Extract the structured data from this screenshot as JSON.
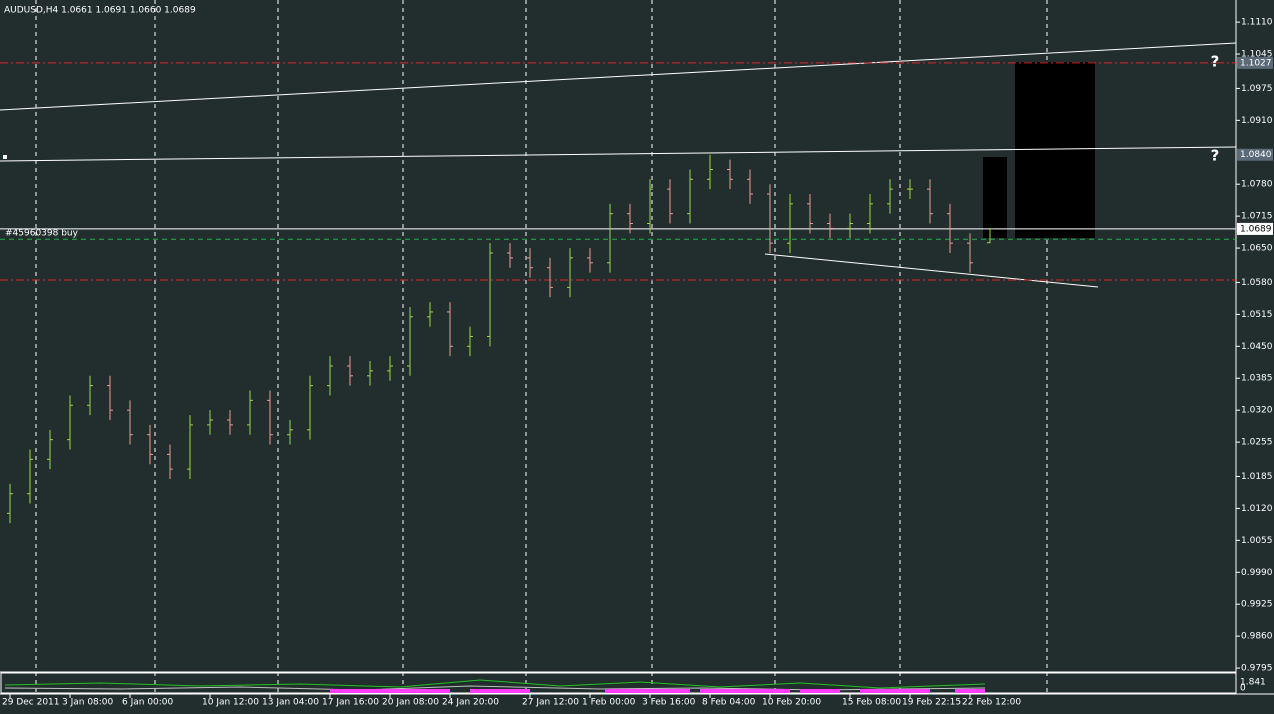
{
  "chart_data": {
    "type": "ohlc",
    "title": "AUDUSD,H4  1.0661 1.0691 1.0660 1.0689",
    "categories": [
      "29 Dec 2011",
      null,
      null,
      "3 Jan 08:00",
      null,
      null,
      "6 Jan 00:00",
      null,
      null,
      null,
      "10 Jan 12:00",
      null,
      null,
      "13 Jan 04:00",
      null,
      null,
      "17 Jan 16:00",
      null,
      null,
      "20 Jan 08:00",
      null,
      null,
      "24 Jan 20:00",
      null,
      null,
      null,
      "27 Jan 12:00",
      null,
      null,
      "1 Feb 00:00",
      null,
      null,
      "3 Feb 16:00",
      null,
      null,
      "8 Feb 04:00",
      null,
      null,
      "10 Feb 20:00",
      null,
      null,
      null,
      "15 Feb 08:00",
      null,
      null,
      "19 Feb 22:15",
      null,
      null,
      "22 Feb 12:00",
      null
    ],
    "open": [
      1.011,
      1.015,
      1.022,
      1.026,
      1.033,
      1.037,
      1.032,
      1.027,
      1.023,
      1.02,
      1.029,
      1.03,
      1.029,
      1.034,
      1.027,
      1.028,
      1.037,
      1.041,
      1.039,
      1.04,
      1.041,
      1.051,
      1.052,
      1.045,
      1.047,
      1.064,
      1.063,
      1.061,
      1.057,
      1.063,
      1.062,
      1.072,
      1.07,
      1.077,
      1.072,
      1.079,
      1.081,
      1.079,
      1.076,
      1.066,
      1.074,
      1.07,
      1.069,
      1.07,
      1.074,
      1.077,
      1.077,
      1.072,
      1.066,
      1.0661
    ],
    "high": [
      1.017,
      1.024,
      1.028,
      1.035,
      1.039,
      1.039,
      1.034,
      1.029,
      1.025,
      1.031,
      1.032,
      1.032,
      1.036,
      1.036,
      1.03,
      1.039,
      1.043,
      1.043,
      1.042,
      1.043,
      1.053,
      1.054,
      1.054,
      1.049,
      1.066,
      1.066,
      1.065,
      1.063,
      1.065,
      1.065,
      1.074,
      1.074,
      1.079,
      1.079,
      1.081,
      1.084,
      1.083,
      1.081,
      1.078,
      1.076,
      1.076,
      1.072,
      1.072,
      1.076,
      1.079,
      1.079,
      1.079,
      1.074,
      1.068,
      1.0691
    ],
    "low": [
      1.009,
      1.013,
      1.02,
      1.024,
      1.031,
      1.03,
      1.025,
      1.021,
      1.018,
      1.018,
      1.027,
      1.027,
      1.027,
      1.025,
      1.025,
      1.026,
      1.035,
      1.037,
      1.037,
      1.038,
      1.039,
      1.049,
      1.043,
      1.043,
      1.045,
      1.061,
      1.059,
      1.055,
      1.055,
      1.06,
      1.06,
      1.068,
      1.068,
      1.07,
      1.07,
      1.077,
      1.077,
      1.074,
      1.064,
      1.064,
      1.068,
      1.067,
      1.067,
      1.068,
      1.072,
      1.075,
      1.07,
      1.064,
      1.06,
      1.066
    ],
    "close": [
      1.015,
      1.022,
      1.026,
      1.033,
      1.037,
      1.032,
      1.027,
      1.023,
      1.02,
      1.029,
      1.03,
      1.029,
      1.034,
      1.027,
      1.028,
      1.037,
      1.041,
      1.039,
      1.04,
      1.041,
      1.051,
      1.052,
      1.045,
      1.047,
      1.064,
      1.063,
      1.061,
      1.057,
      1.063,
      1.062,
      1.072,
      1.07,
      1.077,
      1.072,
      1.079,
      1.081,
      1.079,
      1.076,
      1.066,
      1.074,
      1.07,
      1.069,
      1.07,
      1.074,
      1.077,
      1.077,
      1.072,
      1.066,
      1.062,
      1.0689
    ],
    "up_color": "#9fd84a",
    "down_color": "#e8a090",
    "ylim": [
      0.9787,
      1.1155
    ],
    "yticks": [
      {
        "value": 1.111,
        "label": "1.1110"
      },
      1.1045,
      1.0975,
      {
        "value": 1.091,
        "label": "1.0910"
      },
      {
        "value": 1.078,
        "label": "1.0780"
      },
      1.0715,
      {
        "value": 1.065,
        "label": "1.0650"
      },
      {
        "value": 1.058,
        "label": "1.0580"
      },
      1.0515,
      {
        "value": 1.045,
        "label": "1.0450"
      },
      1.0385,
      {
        "value": 1.032,
        "label": "1.0320"
      },
      1.0255,
      1.0185,
      {
        "value": 1.012,
        "label": "1.0120"
      },
      1.0055,
      {
        "value": 0.999,
        "label": "0.9990"
      },
      0.9925,
      {
        "value": 0.986,
        "label": "0.9860"
      },
      0.9795
    ],
    "levels": [
      {
        "value": 1.1027,
        "color": "#e0262a"
      },
      {
        "value": 1.0585,
        "color": "#e0262a"
      },
      {
        "value": 1.0668,
        "color": "#22b14c"
      }
    ],
    "order_line": {
      "label": "#45960398 buy",
      "value": 1.0689
    },
    "axis_markers": [
      1.1027,
      {
        "value": 1.084,
        "label": "1.0840"
      },
      1.0689
    ],
    "indicator": {
      "top_label": "1.841",
      "bottom_label": "0"
    }
  }
}
